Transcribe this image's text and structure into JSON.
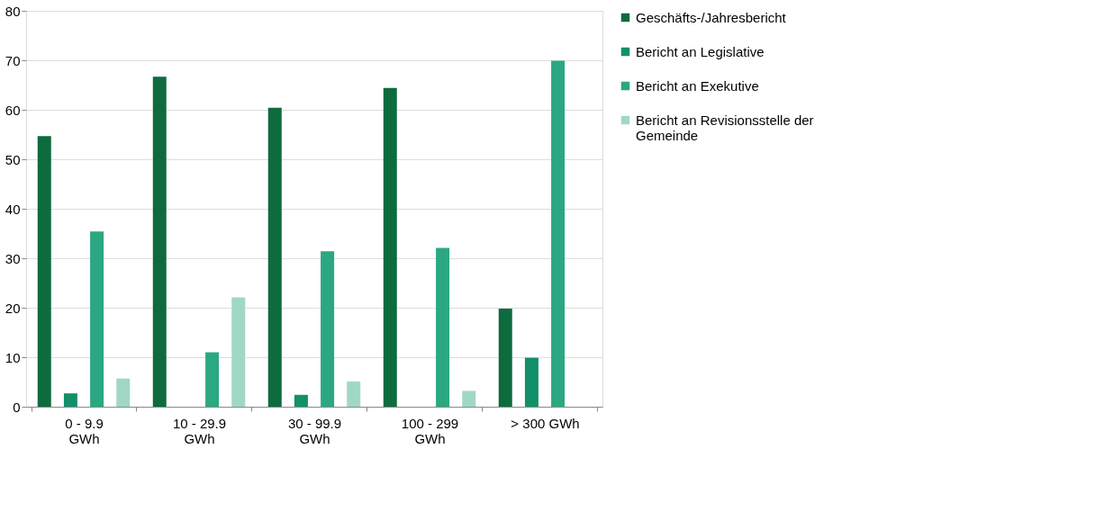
{
  "chart_data": {
    "type": "bar",
    "categories": [
      "0 - 9.9 GWh",
      "10 - 29.9 GWh",
      "30 - 99.9 GWh",
      "100 - 299 GWh",
      "> 300 GWh"
    ],
    "series": [
      {
        "name": "Geschäfts-/Jahresbericht",
        "color": "#0e6b3e",
        "values": [
          54.7,
          66.7,
          60.4,
          64.4,
          19.8
        ]
      },
      {
        "name": "Bericht an Legislative",
        "color": "#12906a",
        "values": [
          2.7,
          0,
          2.4,
          0,
          9.9
        ]
      },
      {
        "name": "Bericht an Exekutive",
        "color": "#2aa882",
        "values": [
          35.4,
          11.0,
          31.4,
          32.1,
          69.9
        ]
      },
      {
        "name": "Bericht an Revisionsstelle der Gemeinde",
        "color": "#a0d8c4",
        "values": [
          5.7,
          22.1,
          5.1,
          3.2,
          0
        ]
      }
    ],
    "ylim": [
      0,
      80
    ],
    "yticks": [
      0,
      10,
      20,
      30,
      40,
      50,
      60,
      70,
      80
    ],
    "grid": "y",
    "legend": "right"
  }
}
